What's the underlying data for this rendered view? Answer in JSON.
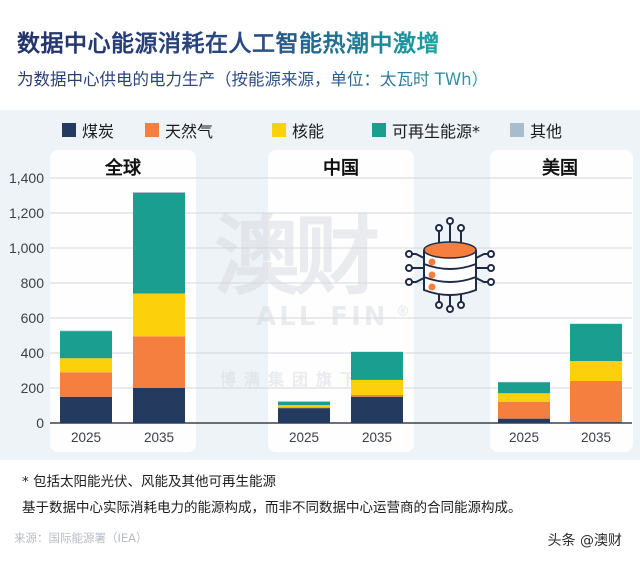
{
  "header": {
    "title": "数据中心能源消耗在人工智能热潮中激增",
    "subtitle": "为数据中心供电的电力生产（按能源来源，单位：太瓦时 TWh）"
  },
  "legend": [
    {
      "label": "煤炭",
      "color": "#243a5e"
    },
    {
      "label": "天然气",
      "color": "#f57f3e"
    },
    {
      "label": "核能",
      "color": "#fcd10c"
    },
    {
      "label": "可再生能源*",
      "color": "#1a9e8f"
    },
    {
      "label": "其他",
      "color": "#a9bccb"
    }
  ],
  "watermark": {
    "main": "澳财",
    "sub": "ALL FIN",
    "mark": "®",
    "group": "博满集团旗下企业"
  },
  "icon": "data-center-database-icon",
  "chart_data": {
    "type": "bar",
    "stacked": true,
    "title": "数据中心能源消耗在人工智能热潮中激增",
    "subtitle": "为数据中心供电的电力生产（按能源来源，单位：太瓦时 TWh）",
    "xlabel": "",
    "ylabel": "TWh",
    "ylim": [
      0,
      1400
    ],
    "yticks": [
      0,
      200,
      400,
      600,
      800,
      1000,
      1200,
      1400
    ],
    "ytick_labels": [
      "0",
      "200",
      "400",
      "600",
      "800",
      "1,000",
      "1,200",
      "1,400"
    ],
    "grid": true,
    "legend_position": "top",
    "series_names": [
      "煤炭",
      "天然气",
      "核能",
      "可再生能源*",
      "其他"
    ],
    "groups": [
      {
        "name": "全球",
        "categories": [
          "2025",
          "2035"
        ],
        "series": [
          {
            "name": "煤炭",
            "values": [
              150,
              200
            ]
          },
          {
            "name": "天然气",
            "values": [
              140,
              295
            ]
          },
          {
            "name": "核能",
            "values": [
              80,
              245
            ]
          },
          {
            "name": "可再生能源*",
            "values": [
              155,
              575
            ]
          },
          {
            "name": "其他",
            "values": [
              3,
              5
            ]
          }
        ]
      },
      {
        "name": "中国",
        "categories": [
          "2025",
          "2035"
        ],
        "series": [
          {
            "name": "煤炭",
            "values": [
              85,
              150
            ]
          },
          {
            "name": "天然气",
            "values": [
              5,
              10
            ]
          },
          {
            "name": "核能",
            "values": [
              12,
              86
            ]
          },
          {
            "name": "可再生能源*",
            "values": [
              20,
              160
            ]
          },
          {
            "name": "其他",
            "values": [
              2,
              2
            ]
          }
        ]
      },
      {
        "name": "美国",
        "categories": [
          "2025",
          "2035"
        ],
        "series": [
          {
            "name": "煤炭",
            "values": [
              25,
              5
            ]
          },
          {
            "name": "天然气",
            "values": [
              95,
              235
            ]
          },
          {
            "name": "核能",
            "values": [
              50,
              114
            ]
          },
          {
            "name": "可再生能源*",
            "values": [
              63,
              212
            ]
          },
          {
            "name": "其他",
            "values": [
              2,
              2
            ]
          }
        ]
      }
    ]
  },
  "footnotes": {
    "note1": "* 包括太阳能光伏、风能及其他可再生能源",
    "note2": "基于数据中心实际消耗电力的能源构成，而非不同数据中心运营商的合同能源构成。",
    "source": "来源：国际能源署（IEA）",
    "brand": "头条 @澳财"
  }
}
